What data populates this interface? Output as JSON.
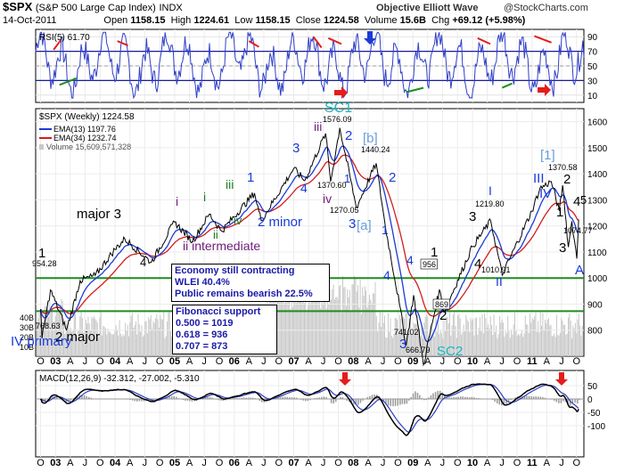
{
  "header": {
    "symbol": "$SPX",
    "name": "(S&P 500 Large Cap Index)",
    "exchange": "INDX",
    "date": "14-Oct-2011",
    "open_label": "Open",
    "open": "1158.15",
    "high_label": "High",
    "high": "1224.61",
    "low_label": "Low",
    "low": "1158.15",
    "close_label": "Close",
    "close": "1224.58",
    "volume_label": "Volume",
    "volume": "15.6B",
    "chg_label": "Chg",
    "chg": "+69.12 (+5.98%)",
    "watermark": "Objective Elliott Wave",
    "copyright": "@StockCharts.com"
  },
  "boxes": {
    "economy": [
      "Economy still contracting",
      "WLEI 40.4%",
      "Public remains bearish 22.5%"
    ],
    "fibonacci": [
      "Fibonacci support",
      "0.500 = 1019",
      "0.618 = 936",
      "0.707 = 873"
    ]
  },
  "colors": {
    "price": "#000000",
    "ema13": "#1a3bd6",
    "ema34": "#d41c1c",
    "volume": "#c8c8c8",
    "rsi": "#2f3fc8",
    "macd": "#000000",
    "signal": "#2f3fc8",
    "histogram": "#9a9a9a",
    "support": "#1e8c1e",
    "wave_black": "#000000",
    "wave_blue": "#1a3bd6",
    "wave_green": "#1e7a1e",
    "wave_purple": "#6e1d7a",
    "wave_cyan": "#19b6c4",
    "wave_lightblue": "#6a9fd9",
    "arrow_red": "#e41c1c"
  },
  "chart_data": [
    {
      "type": "line",
      "panel": "RSI",
      "legend": "RSI(5) 61.70",
      "ylim": [
        0,
        100
      ],
      "y_ticks": [
        10,
        30,
        50,
        70,
        90
      ],
      "x_ticks": [
        "O",
        "03",
        "A",
        "J",
        "O",
        "04",
        "A",
        "J",
        "O",
        "05",
        "A",
        "J",
        "O",
        "06",
        "A",
        "J",
        "O",
        "07",
        "A",
        "J",
        "O",
        "08",
        "A",
        "J",
        "O",
        "09",
        "A",
        "J",
        "O",
        "10",
        "A",
        "J",
        "O",
        "11",
        "A",
        "J",
        "O"
      ],
      "last_value": 61.7
    },
    {
      "type": "line",
      "panel": "Price",
      "legend": [
        "$SPX (Weekly) 1224.58",
        "EMA(13) 1197.76",
        "EMA(34) 1232.74",
        "Volume 15,609,571,328"
      ],
      "ylim": [
        700,
        1650
      ],
      "y_ticks": [
        800,
        900,
        1000,
        1100,
        1200,
        1300,
        1400,
        1500,
        1600
      ],
      "volume_ticks": [
        "10B",
        "20B",
        "30B",
        "40B"
      ],
      "support_lines": [
        1000,
        873
      ],
      "x_ticks": [
        "O",
        "03",
        "A",
        "J",
        "O",
        "04",
        "A",
        "J",
        "O",
        "05",
        "A",
        "J",
        "O",
        "06",
        "A",
        "J",
        "O",
        "07",
        "A",
        "J",
        "O",
        "08",
        "A",
        "J",
        "O",
        "09",
        "A",
        "J",
        "O",
        "10",
        "A",
        "J",
        "O",
        "11",
        "A",
        "J",
        "O"
      ],
      "series": [
        {
          "name": "$SPX (Weekly)",
          "points": [
            [
              "2002-10-01",
              880
            ],
            [
              "2002-10-10",
              768.63
            ],
            [
              "2002-12-01",
              954.28
            ],
            [
              "2003-03-10",
              800.73
            ],
            [
              "2003-06-01",
              990
            ],
            [
              "2003-09-01",
              1010
            ],
            [
              "2003-12-31",
              1110
            ],
            [
              "2004-03-01",
              1150
            ],
            [
              "2004-08-10",
              1060
            ],
            [
              "2004-12-31",
              1215
            ],
            [
              "2005-04-20",
              1140
            ],
            [
              "2005-08-01",
              1245
            ],
            [
              "2005-10-15",
              1180
            ],
            [
              "2006-05-05",
              1326
            ],
            [
              "2006-06-15",
              1220
            ],
            [
              "2006-12-31",
              1420
            ],
            [
              "2007-03-10",
              1374
            ],
            [
              "2007-07-15",
              1555
            ],
            [
              "2007-08-15",
              1370.6
            ],
            [
              "2007-10-10",
              1576.09
            ],
            [
              "2008-01-20",
              1270.05
            ],
            [
              "2008-05-20",
              1440.24
            ],
            [
              "2008-07-15",
              1200
            ],
            [
              "2008-10-10",
              900
            ],
            [
              "2008-11-20",
              741.02
            ],
            [
              "2009-01-05",
              934
            ],
            [
              "2009-03-06",
              666.79
            ],
            [
              "2009-06-12",
              956
            ],
            [
              "2009-07-10",
              869
            ],
            [
              "2009-12-31",
              1120
            ],
            [
              "2010-04-23",
              1219.8
            ],
            [
              "2010-07-02",
              1010.91
            ],
            [
              "2010-12-31",
              1257
            ],
            [
              "2011-02-18",
              1343
            ],
            [
              "2011-04-29",
              1370.58
            ],
            [
              "2011-06-17",
              1258
            ],
            [
              "2011-07-08",
              1356
            ],
            [
              "2011-08-12",
              1119
            ],
            [
              "2011-09-02",
              1218
            ],
            [
              "2011-10-03",
              1074.77
            ],
            [
              "2011-10-14",
              1224.58
            ]
          ]
        },
        {
          "name": "EMA(13)",
          "last": 1197.76
        },
        {
          "name": "EMA(34)",
          "last": 1232.74
        },
        {
          "name": "Volume",
          "last": "15,609,571,328"
        }
      ]
    },
    {
      "type": "line",
      "panel": "MACD",
      "legend": "MACD(12,26,9) -32.312, -27.002, -5.310",
      "y_ticks": [
        50,
        0,
        -50,
        -100
      ],
      "x_ticks": [
        "O",
        "03",
        "A",
        "J",
        "O",
        "04",
        "A",
        "J",
        "O",
        "05",
        "A",
        "J",
        "O",
        "06",
        "A",
        "J",
        "O",
        "07",
        "A",
        "J",
        "O",
        "08",
        "A",
        "J",
        "O",
        "09",
        "A",
        "J",
        "O",
        "10",
        "A",
        "J",
        "O",
        "11",
        "A",
        "J",
        "O"
      ],
      "values": [
        -32.312,
        -27.002,
        -5.31
      ]
    }
  ],
  "price_labels": [
    "768.63",
    "954.28",
    "1576.09",
    "1370.60",
    "1270.05",
    "1440.24",
    "741.02",
    "666.79",
    "956",
    "869",
    "1219.80",
    "1010.91",
    "1370.58",
    "1074.77"
  ],
  "wave_labels": [
    {
      "t": "1",
      "c": "black"
    },
    {
      "t": "2 major",
      "c": "black"
    },
    {
      "t": "IV primary",
      "c": "blue"
    },
    {
      "t": "major 3",
      "c": "black"
    },
    {
      "t": "4",
      "c": "black"
    },
    {
      "t": "i",
      "c": "purple"
    },
    {
      "t": "ii intermediate",
      "c": "purple"
    },
    {
      "t": "i",
      "c": "green"
    },
    {
      "t": "ii",
      "c": "green"
    },
    {
      "t": "iii",
      "c": "green"
    },
    {
      "t": "iv",
      "c": "green"
    },
    {
      "t": "1",
      "c": "blue"
    },
    {
      "t": "2 minor",
      "c": "blue"
    },
    {
      "t": "3",
      "c": "blue"
    },
    {
      "t": "4",
      "c": "blue"
    },
    {
      "t": "iii",
      "c": "purple"
    },
    {
      "t": "iv",
      "c": "purple"
    },
    {
      "t": "SC1",
      "c": "cyan"
    },
    {
      "t": "1",
      "c": "blue"
    },
    {
      "t": "2",
      "c": "blue"
    },
    {
      "t": "[b]",
      "c": "lightblue"
    },
    {
      "t": "3",
      "c": "blue"
    },
    {
      "t": "[a]",
      "c": "lightblue"
    },
    {
      "t": "4",
      "c": "blue"
    },
    {
      "t": "2",
      "c": "blue"
    },
    {
      "t": "1",
      "c": "blue"
    },
    {
      "t": "4",
      "c": "blue"
    },
    {
      "t": "3",
      "c": "blue"
    },
    {
      "t": "SC2",
      "c": "cyan"
    },
    {
      "t": "1",
      "c": "black"
    },
    {
      "t": "2",
      "c": "black"
    },
    {
      "t": "3",
      "c": "black"
    },
    {
      "t": "4",
      "c": "black"
    },
    {
      "t": "I",
      "c": "blue"
    },
    {
      "t": "II",
      "c": "blue"
    },
    {
      "t": "[1]",
      "c": "lightblue"
    },
    {
      "t": "III",
      "c": "blue"
    },
    {
      "t": "IV",
      "c": "blue"
    },
    {
      "t": "1",
      "c": "black"
    },
    {
      "t": "2",
      "c": "black"
    },
    {
      "t": "4",
      "c": "black"
    },
    {
      "t": "3",
      "c": "black"
    },
    {
      "t": "A",
      "c": "blue"
    },
    {
      "t": "5",
      "c": "black"
    }
  ]
}
